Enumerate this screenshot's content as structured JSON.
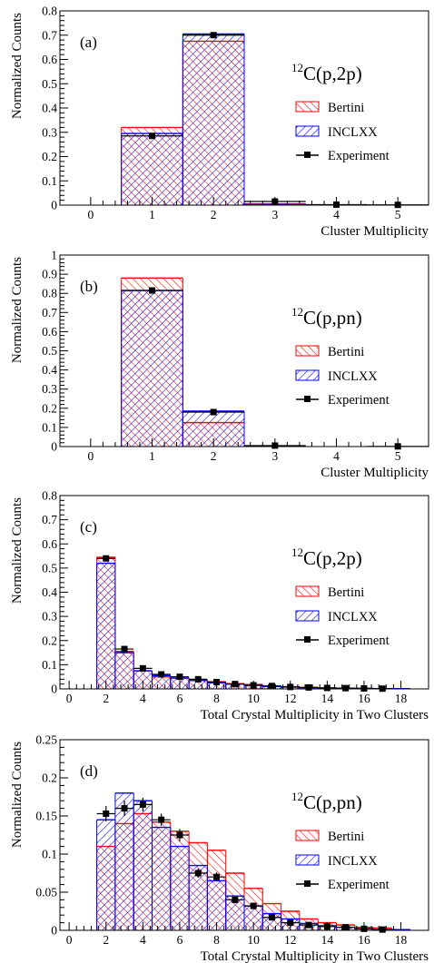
{
  "figure": {
    "legend": {
      "bertini": "Bertini",
      "inclxx": "INCLXX",
      "experiment": "Experiment"
    },
    "colors": {
      "bertini": "#ff0000",
      "inclxx": "#0000ff",
      "experiment": "#000000"
    }
  },
  "chart_data": [
    {
      "type": "bar",
      "panel_label": "(a)",
      "reaction": {
        "isotope": "12",
        "text": "C(p,2p)"
      },
      "xlabel": "Cluster Multiplicity",
      "ylabel": "Normalized Counts",
      "xlim": [
        -0.5,
        5.5
      ],
      "ylim": [
        0,
        0.8
      ],
      "xticks": [
        0,
        1,
        2,
        3,
        4,
        5
      ],
      "yticks": [
        0,
        0.1,
        0.2,
        0.3,
        0.4,
        0.5,
        0.6,
        0.7,
        0.8
      ],
      "ytick_labels": [
        "0",
        "0.1",
        "0.2",
        "0.3",
        "0.4",
        "0.5",
        "0.6",
        "0.7",
        "0.8"
      ],
      "bins": [
        [
          0.5,
          1.5
        ],
        [
          1.5,
          2.5
        ],
        [
          2.5,
          3.5
        ],
        [
          3.5,
          4.5
        ]
      ],
      "series": [
        {
          "name": "Bertini",
          "values": [
            0.32,
            0.675,
            0.005,
            0.0
          ]
        },
        {
          "name": "INCLXX",
          "values": [
            0.295,
            0.705,
            0.003,
            0.0
          ]
        }
      ],
      "experiment": {
        "x": [
          1,
          2,
          3,
          4,
          5
        ],
        "y": [
          0.285,
          0.7,
          0.015,
          0.002,
          0.001
        ],
        "xerr": [
          0.5,
          0.5,
          0.5,
          0.5,
          0.5
        ],
        "yerr": [
          0.006,
          0.008,
          0.003,
          0.001,
          0.001
        ]
      }
    },
    {
      "type": "bar",
      "panel_label": "(b)",
      "reaction": {
        "isotope": "12",
        "text": "C(p,pn)"
      },
      "xlabel": "Cluster Multiplicity",
      "ylabel": "Normalized Counts",
      "xlim": [
        -0.5,
        5.5
      ],
      "ylim": [
        0,
        1.0
      ],
      "xticks": [
        0,
        1,
        2,
        3,
        4,
        5
      ],
      "yticks": [
        0,
        0.1,
        0.2,
        0.3,
        0.4,
        0.5,
        0.6,
        0.7,
        0.8,
        0.9,
        1.0
      ],
      "ytick_labels": [
        "0",
        "0.1",
        "0.2",
        "0.3",
        "0.4",
        "0.5",
        "0.6",
        "0.7",
        "0.8",
        "0.9",
        "1"
      ],
      "bins": [
        [
          0.5,
          1.5
        ],
        [
          1.5,
          2.5
        ],
        [
          2.5,
          3.5
        ],
        [
          3.5,
          4.5
        ]
      ],
      "series": [
        {
          "name": "Bertini",
          "values": [
            0.88,
            0.125,
            0.002,
            0.0
          ]
        },
        {
          "name": "INCLXX",
          "values": [
            0.815,
            0.185,
            0.002,
            0.0
          ]
        }
      ],
      "experiment": {
        "x": [
          1,
          2,
          3,
          5
        ],
        "y": [
          0.815,
          0.18,
          0.005,
          0.001
        ],
        "xerr": [
          0.5,
          0.5,
          0.5,
          0.5
        ],
        "yerr": [
          0.01,
          0.006,
          0.002,
          0.001
        ]
      }
    },
    {
      "type": "bar",
      "panel_label": "(c)",
      "reaction": {
        "isotope": "12",
        "text": "C(p,2p)"
      },
      "xlabel": "Total Crystal Multiplicity in Two Clusters",
      "ylabel": "Normalized Counts",
      "xlim": [
        -0.5,
        19.5
      ],
      "ylim": [
        0,
        0.8
      ],
      "xticks": [
        0,
        2,
        4,
        6,
        8,
        10,
        12,
        14,
        16,
        18
      ],
      "yticks": [
        0,
        0.1,
        0.2,
        0.3,
        0.4,
        0.5,
        0.6,
        0.7,
        0.8
      ],
      "ytick_labels": [
        "0",
        "0.1",
        "0.2",
        "0.3",
        "0.4",
        "0.5",
        "0.6",
        "0.7",
        "0.8"
      ],
      "bins": [
        [
          1.5,
          2.5
        ],
        [
          2.5,
          3.5
        ],
        [
          3.5,
          4.5
        ],
        [
          4.5,
          5.5
        ],
        [
          5.5,
          6.5
        ],
        [
          6.5,
          7.5
        ],
        [
          7.5,
          8.5
        ],
        [
          8.5,
          9.5
        ],
        [
          9.5,
          10.5
        ],
        [
          10.5,
          11.5
        ],
        [
          11.5,
          12.5
        ],
        [
          12.5,
          13.5
        ],
        [
          13.5,
          14.5
        ],
        [
          14.5,
          15.5
        ],
        [
          15.5,
          16.5
        ],
        [
          16.5,
          17.5
        ],
        [
          17.5,
          18.5
        ]
      ],
      "series": [
        {
          "name": "Bertini",
          "values": [
            0.545,
            0.155,
            0.075,
            0.05,
            0.045,
            0.035,
            0.03,
            0.022,
            0.018,
            0.012,
            0.009,
            0.006,
            0.004,
            0.003,
            0.002,
            0.001,
            0.001
          ]
        },
        {
          "name": "INCLXX",
          "values": [
            0.52,
            0.15,
            0.075,
            0.055,
            0.045,
            0.035,
            0.025,
            0.02,
            0.015,
            0.01,
            0.008,
            0.005,
            0.004,
            0.003,
            0.002,
            0.001,
            0.001
          ]
        }
      ],
      "experiment": {
        "x": [
          2,
          3,
          4,
          5,
          6,
          7,
          8,
          9,
          10,
          11,
          12,
          13,
          14,
          15,
          16,
          17
        ],
        "y": [
          0.54,
          0.165,
          0.085,
          0.06,
          0.05,
          0.04,
          0.028,
          0.02,
          0.015,
          0.012,
          0.008,
          0.006,
          0.004,
          0.003,
          0.002,
          0.001
        ],
        "xerr": [
          0.5,
          0.5,
          0.5,
          0.5,
          0.5,
          0.5,
          0.5,
          0.5,
          0.5,
          0.5,
          0.5,
          0.5,
          0.5,
          0.5,
          0.5,
          0.5
        ],
        "yerr": [
          0.006,
          0.004,
          0.003,
          0.002,
          0.002,
          0.002,
          0.002,
          0.001,
          0.001,
          0.001,
          0.001,
          0.001,
          0.001,
          0.001,
          0.001,
          0.001
        ]
      }
    },
    {
      "type": "bar",
      "panel_label": "(d)",
      "reaction": {
        "isotope": "12",
        "text": "C(p,pn)"
      },
      "xlabel": "Total Crystal Multiplicity in Two Clusters",
      "ylabel": "Normalized Counts",
      "xlim": [
        -0.5,
        19.5
      ],
      "ylim": [
        0,
        0.25
      ],
      "xticks": [
        0,
        2,
        4,
        6,
        8,
        10,
        12,
        14,
        16,
        18
      ],
      "yticks": [
        0,
        0.05,
        0.1,
        0.15,
        0.2,
        0.25
      ],
      "ytick_labels": [
        "0",
        "0.05",
        "0.1",
        "0.15",
        "0.2",
        "0.25"
      ],
      "bins": [
        [
          1.5,
          2.5
        ],
        [
          2.5,
          3.5
        ],
        [
          3.5,
          4.5
        ],
        [
          4.5,
          5.5
        ],
        [
          5.5,
          6.5
        ],
        [
          6.5,
          7.5
        ],
        [
          7.5,
          8.5
        ],
        [
          8.5,
          9.5
        ],
        [
          9.5,
          10.5
        ],
        [
          10.5,
          11.5
        ],
        [
          11.5,
          12.5
        ],
        [
          12.5,
          13.5
        ],
        [
          13.5,
          14.5
        ],
        [
          14.5,
          15.5
        ],
        [
          15.5,
          16.5
        ],
        [
          16.5,
          17.5
        ],
        [
          17.5,
          18.5
        ]
      ],
      "series": [
        {
          "name": "Bertini",
          "values": [
            0.11,
            0.14,
            0.153,
            0.142,
            0.13,
            0.115,
            0.105,
            0.075,
            0.055,
            0.035,
            0.025,
            0.015,
            0.01,
            0.007,
            0.004,
            0.003,
            0.001
          ]
        },
        {
          "name": "INCLXX",
          "values": [
            0.145,
            0.18,
            0.17,
            0.135,
            0.11,
            0.085,
            0.065,
            0.045,
            0.032,
            0.022,
            0.015,
            0.009,
            0.006,
            0.004,
            0.002,
            0.001,
            0.001
          ]
        }
      ],
      "experiment": {
        "x": [
          2,
          3,
          4,
          5,
          6,
          7,
          8,
          9,
          10,
          11,
          12,
          13,
          14,
          15,
          16,
          17
        ],
        "y": [
          0.153,
          0.16,
          0.165,
          0.145,
          0.125,
          0.075,
          0.07,
          0.04,
          0.032,
          0.017,
          0.01,
          0.007,
          0.005,
          0.004,
          0.002,
          0.001
        ],
        "xerr": [
          0.5,
          0.5,
          0.5,
          0.5,
          0.5,
          0.5,
          0.5,
          0.5,
          0.5,
          0.5,
          0.5,
          0.5,
          0.5,
          0.5,
          0.5,
          0.5
        ],
        "yerr": [
          0.01,
          0.01,
          0.009,
          0.008,
          0.008,
          0.006,
          0.006,
          0.004,
          0.004,
          0.003,
          0.002,
          0.002,
          0.002,
          0.002,
          0.001,
          0.001
        ]
      }
    }
  ]
}
